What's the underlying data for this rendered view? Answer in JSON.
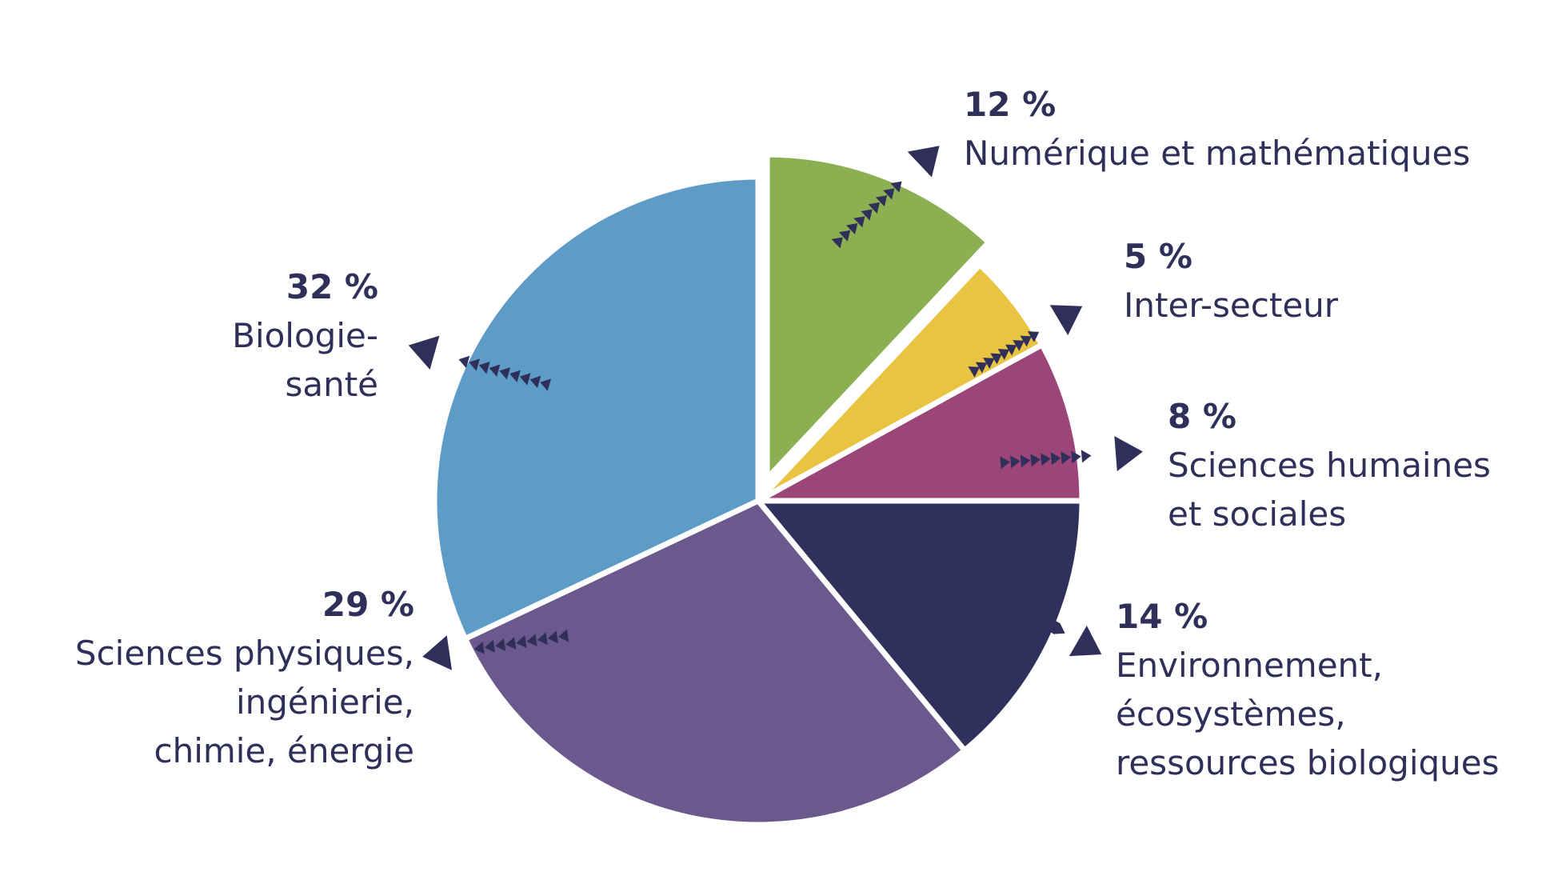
{
  "colors": {
    "text": "#2f2f5a",
    "arrow": "#2f2f5a",
    "separator": "#ffffff"
  },
  "chart_data": {
    "type": "pie",
    "title": "",
    "slices": [
      {
        "key": "numerique",
        "pct_label": "12 %",
        "label": "Numérique et mathématiques",
        "value": 12,
        "color": "#8bb052",
        "exploded": true
      },
      {
        "key": "inter",
        "pct_label": "5 %",
        "label": "Inter-secteur",
        "value": 5,
        "color": "#e9c443"
      },
      {
        "key": "shs",
        "pct_label": "8 %",
        "label": "Sciences humaines\net sociales",
        "value": 8,
        "color": "#9b4579"
      },
      {
        "key": "env",
        "pct_label": "14 %",
        "label": "Environnement,\nécosystèmes,\nressources biologiques",
        "value": 14,
        "color": "#2f305b"
      },
      {
        "key": "phys",
        "pct_label": "29 %",
        "label": "Sciences physiques,\ningénierie,\nchimie, énergie",
        "value": 29,
        "color": "#6b598d"
      },
      {
        "key": "bio",
        "pct_label": "32 %",
        "label": "Biologie-\nsanté",
        "value": 32,
        "color": "#5d9cc7"
      }
    ],
    "legend": "none"
  }
}
